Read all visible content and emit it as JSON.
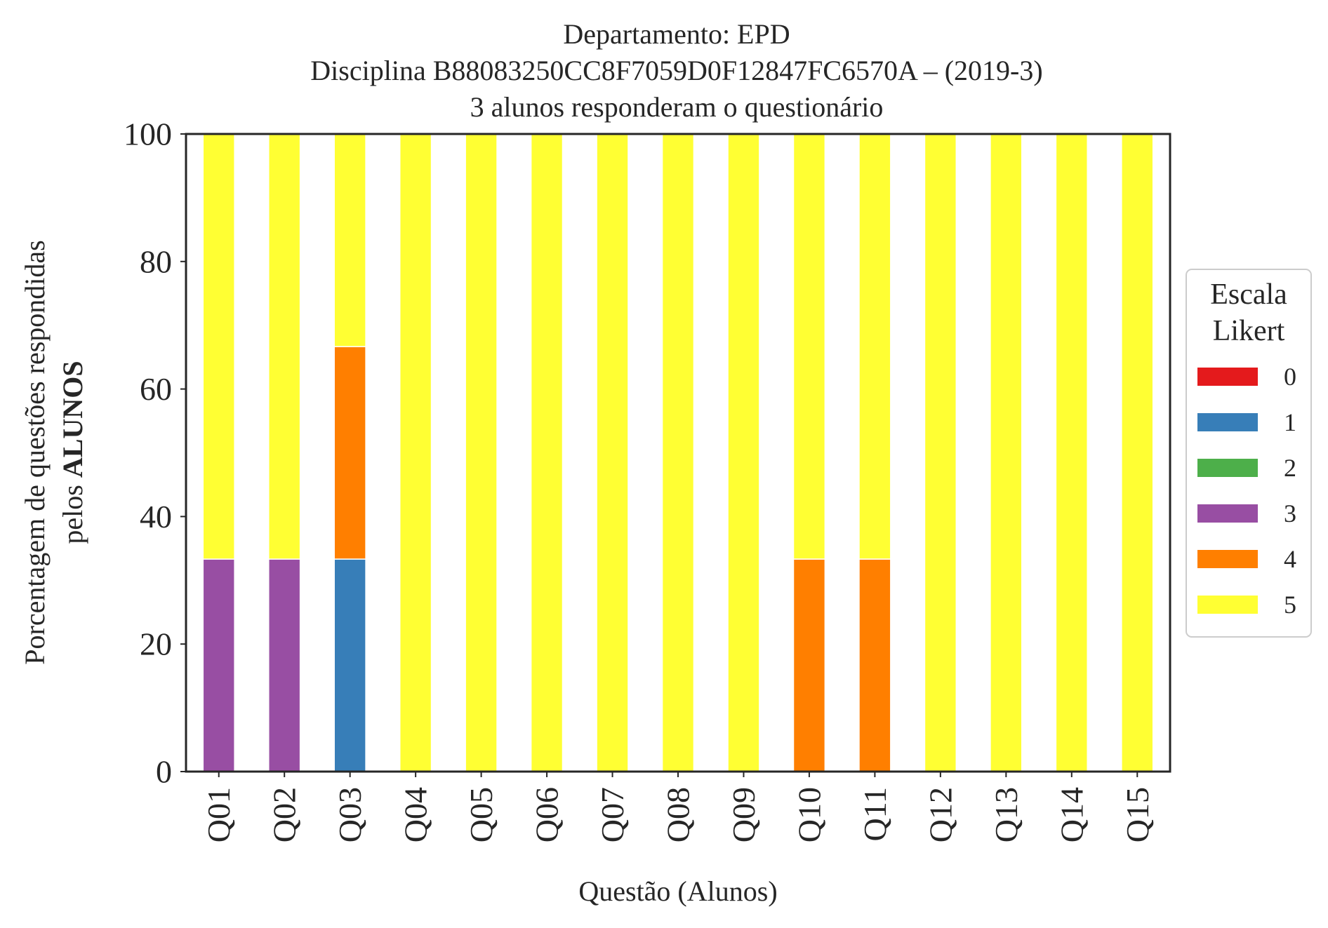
{
  "chart_data": {
    "type": "bar",
    "stacked": true,
    "title_lines": [
      "Departamento: EPD",
      "Disciplina B88083250CC8F7059D0F12847FC6570A – (2019-3)",
      "3 alunos responderam o questionário"
    ],
    "xlabel": "Questão (Alunos)",
    "ylabel_line1": "Porcentagem de questões respondidas",
    "ylabel_line2_prefix": "pelos ",
    "ylabel_line2_bold": "ALUNOS",
    "ylim": [
      0,
      100
    ],
    "yticks": [
      "0",
      "20",
      "40",
      "60",
      "80",
      "100"
    ],
    "grid": false,
    "legend_position": "right",
    "legend_title_lines": [
      "Escala",
      "Likert"
    ],
    "categories": [
      "Q01",
      "Q02",
      "Q03",
      "Q04",
      "Q05",
      "Q06",
      "Q07",
      "Q08",
      "Q09",
      "Q10",
      "Q11",
      "Q12",
      "Q13",
      "Q14",
      "Q15"
    ],
    "series": [
      {
        "name": "0",
        "color": "#e41a1c",
        "values": [
          0,
          0,
          0,
          0,
          0,
          0,
          0,
          0,
          0,
          0,
          0,
          0,
          0,
          0,
          0
        ]
      },
      {
        "name": "1",
        "color": "#377eb8",
        "values": [
          0,
          0,
          33.33,
          0,
          0,
          0,
          0,
          0,
          0,
          0,
          0,
          0,
          0,
          0,
          0
        ]
      },
      {
        "name": "2",
        "color": "#4daf4a",
        "values": [
          0,
          0,
          0,
          0,
          0,
          0,
          0,
          0,
          0,
          0,
          0,
          0,
          0,
          0,
          0
        ]
      },
      {
        "name": "3",
        "color": "#984ea3",
        "values": [
          33.33,
          33.33,
          0,
          0,
          0,
          0,
          0,
          0,
          0,
          0,
          0,
          0,
          0,
          0,
          0
        ]
      },
      {
        "name": "4",
        "color": "#ff7f00",
        "values": [
          0,
          0,
          33.33,
          0,
          0,
          0,
          0,
          0,
          0,
          33.33,
          33.33,
          0,
          0,
          0,
          0
        ]
      },
      {
        "name": "5",
        "color": "#ffff33",
        "values": [
          66.67,
          66.67,
          33.33,
          100,
          100,
          100,
          100,
          100,
          100,
          66.67,
          66.67,
          100,
          100,
          100,
          100
        ]
      }
    ]
  }
}
